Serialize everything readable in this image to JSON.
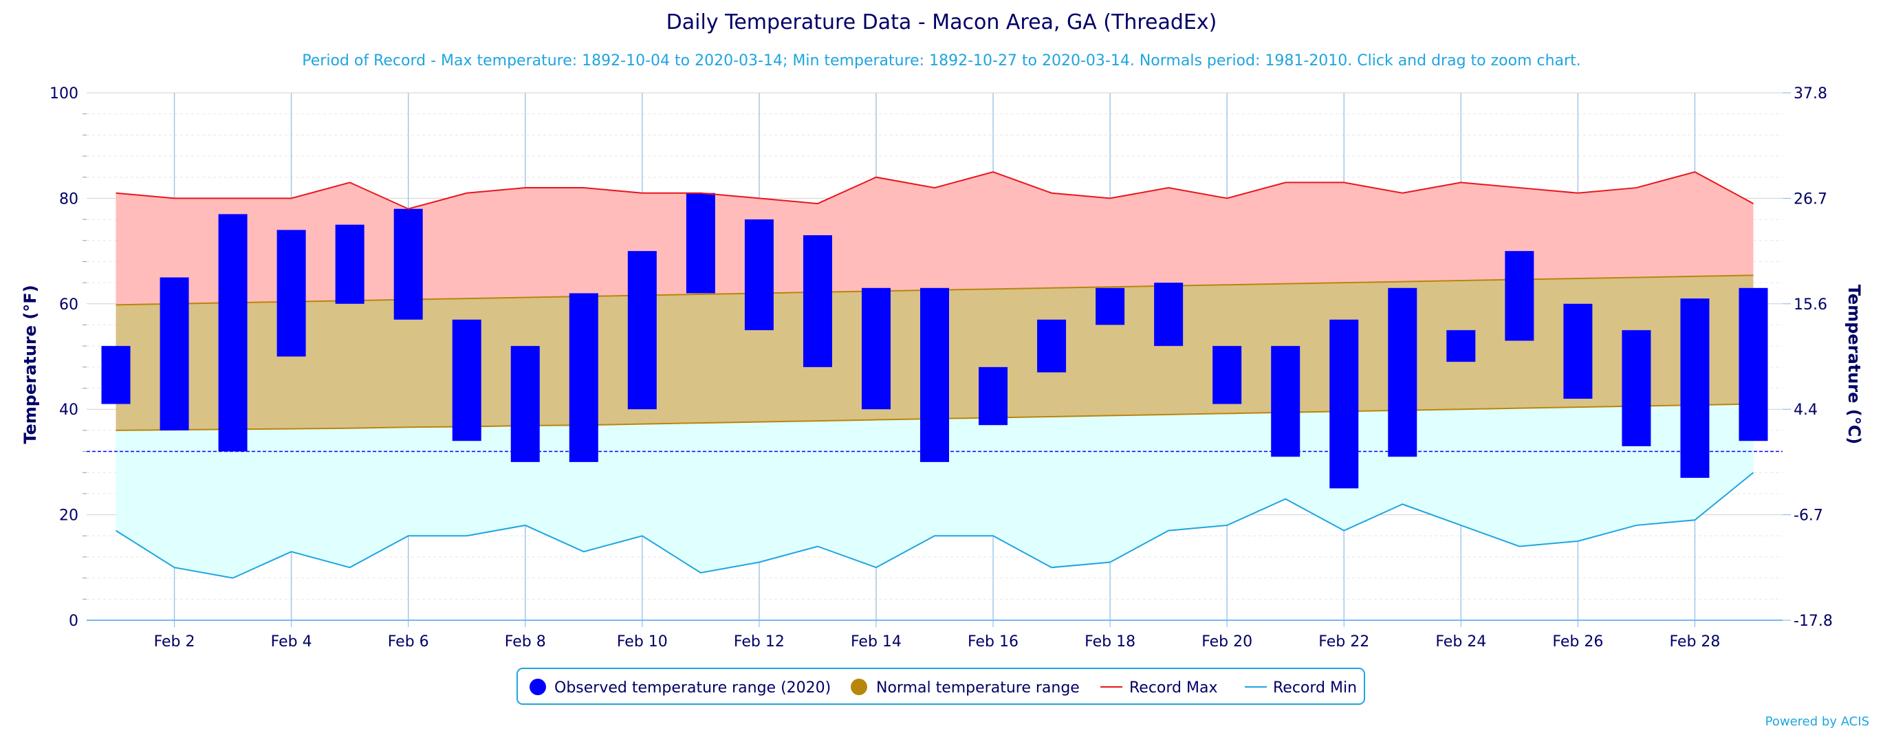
{
  "title": "Daily Temperature Data - Macon Area, GA (ThreadEx)",
  "subtitle": "Period of Record - Max temperature: 1892-10-04 to 2020-03-14; Min temperature: 1892-10-27 to 2020-03-14. Normals period: 1981-2010. Click and drag to zoom chart.",
  "credit": "Powered by ACIS",
  "colors": {
    "observed": "#0000ff",
    "normal_fill": "#d9c286",
    "normal_line": "#b8860b",
    "record_max_fill": "#ffbcbb",
    "record_max_line": "#e8161d",
    "record_min_fill": "#e0ffff",
    "record_min_line": "#1ea5e0",
    "freezing_line": "#0000ff",
    "text": "#000066",
    "subtitle": "#1ea5e0"
  },
  "chart_data": {
    "type": "bar",
    "title": "Daily Temperature Data - Macon Area, GA (ThreadEx)",
    "ylabel": "Temperature (°F)",
    "ylabel_right": "Temperature (°C)",
    "ylim": [
      0,
      100
    ],
    "y_ticks": [
      0,
      20,
      40,
      60,
      80,
      100
    ],
    "y_ticks_right": [
      "-17.8",
      "-6.7",
      "4.4",
      "15.6",
      "26.7",
      "37.8"
    ],
    "x_ticks": [
      "Feb 2",
      "Feb 4",
      "Feb 6",
      "Feb 8",
      "Feb 10",
      "Feb 12",
      "Feb 14",
      "Feb 16",
      "Feb 18",
      "Feb 20",
      "Feb 22",
      "Feb 24",
      "Feb 26",
      "Feb 28"
    ],
    "x_tick_days": [
      2,
      4,
      6,
      8,
      10,
      12,
      14,
      16,
      18,
      20,
      22,
      24,
      26,
      28
    ],
    "days": [
      1,
      2,
      3,
      4,
      5,
      6,
      7,
      8,
      9,
      10,
      11,
      12,
      13,
      14,
      15,
      16,
      17,
      18,
      19,
      20,
      21,
      22,
      23,
      24,
      25,
      26,
      27,
      28,
      29
    ],
    "freezing": 32,
    "grid": true,
    "legend_position": "bottom",
    "legend": [
      "Observed temperature range (2020)",
      "Normal temperature range",
      "Record Max",
      "Record Min"
    ],
    "series": [
      {
        "name": "Observed temperature range (2020)",
        "type": "columnrange",
        "low": [
          41,
          36,
          32,
          50,
          60,
          57,
          34,
          30,
          30,
          40,
          62,
          55,
          48,
          40,
          30,
          37,
          47,
          56,
          52,
          41,
          31,
          25,
          31,
          49,
          53,
          42,
          33,
          27,
          34
        ],
        "high": [
          52,
          65,
          77,
          74,
          75,
          78,
          57,
          52,
          62,
          70,
          81,
          76,
          73,
          63,
          63,
          48,
          57,
          63,
          64,
          52,
          52,
          57,
          63,
          55,
          70,
          60,
          55,
          61,
          63
        ]
      },
      {
        "name": "Normal temperature range",
        "type": "arearange",
        "low": [
          36,
          36.1,
          36.2,
          36.3,
          36.4,
          36.6,
          36.7,
          36.9,
          37.0,
          37.2,
          37.4,
          37.6,
          37.8,
          38.0,
          38.2,
          38.4,
          38.6,
          38.8,
          39.0,
          39.2,
          39.4,
          39.6,
          39.8,
          40.0,
          40.2,
          40.4,
          40.6,
          40.8,
          41.0
        ],
        "high": [
          59.8,
          60.0,
          60.2,
          60.4,
          60.6,
          60.8,
          61.0,
          61.2,
          61.4,
          61.6,
          61.8,
          62.0,
          62.2,
          62.4,
          62.6,
          62.8,
          63.0,
          63.2,
          63.4,
          63.6,
          63.8,
          64.0,
          64.2,
          64.4,
          64.6,
          64.8,
          65.0,
          65.2,
          65.4
        ]
      },
      {
        "name": "Record Max",
        "type": "line",
        "values": [
          81,
          80,
          80,
          80,
          83,
          78,
          81,
          82,
          82,
          81,
          81,
          80,
          79,
          84,
          82,
          85,
          81,
          80,
          82,
          80,
          83,
          83,
          81,
          83,
          82,
          81,
          82,
          85,
          79
        ]
      },
      {
        "name": "Record Min",
        "type": "line",
        "values": [
          17,
          10,
          8,
          13,
          10,
          16,
          16,
          18,
          13,
          16,
          9,
          11,
          14,
          10,
          16,
          16,
          10,
          11,
          17,
          18,
          23,
          17,
          22,
          18,
          14,
          15,
          18,
          19,
          28
        ]
      }
    ]
  }
}
